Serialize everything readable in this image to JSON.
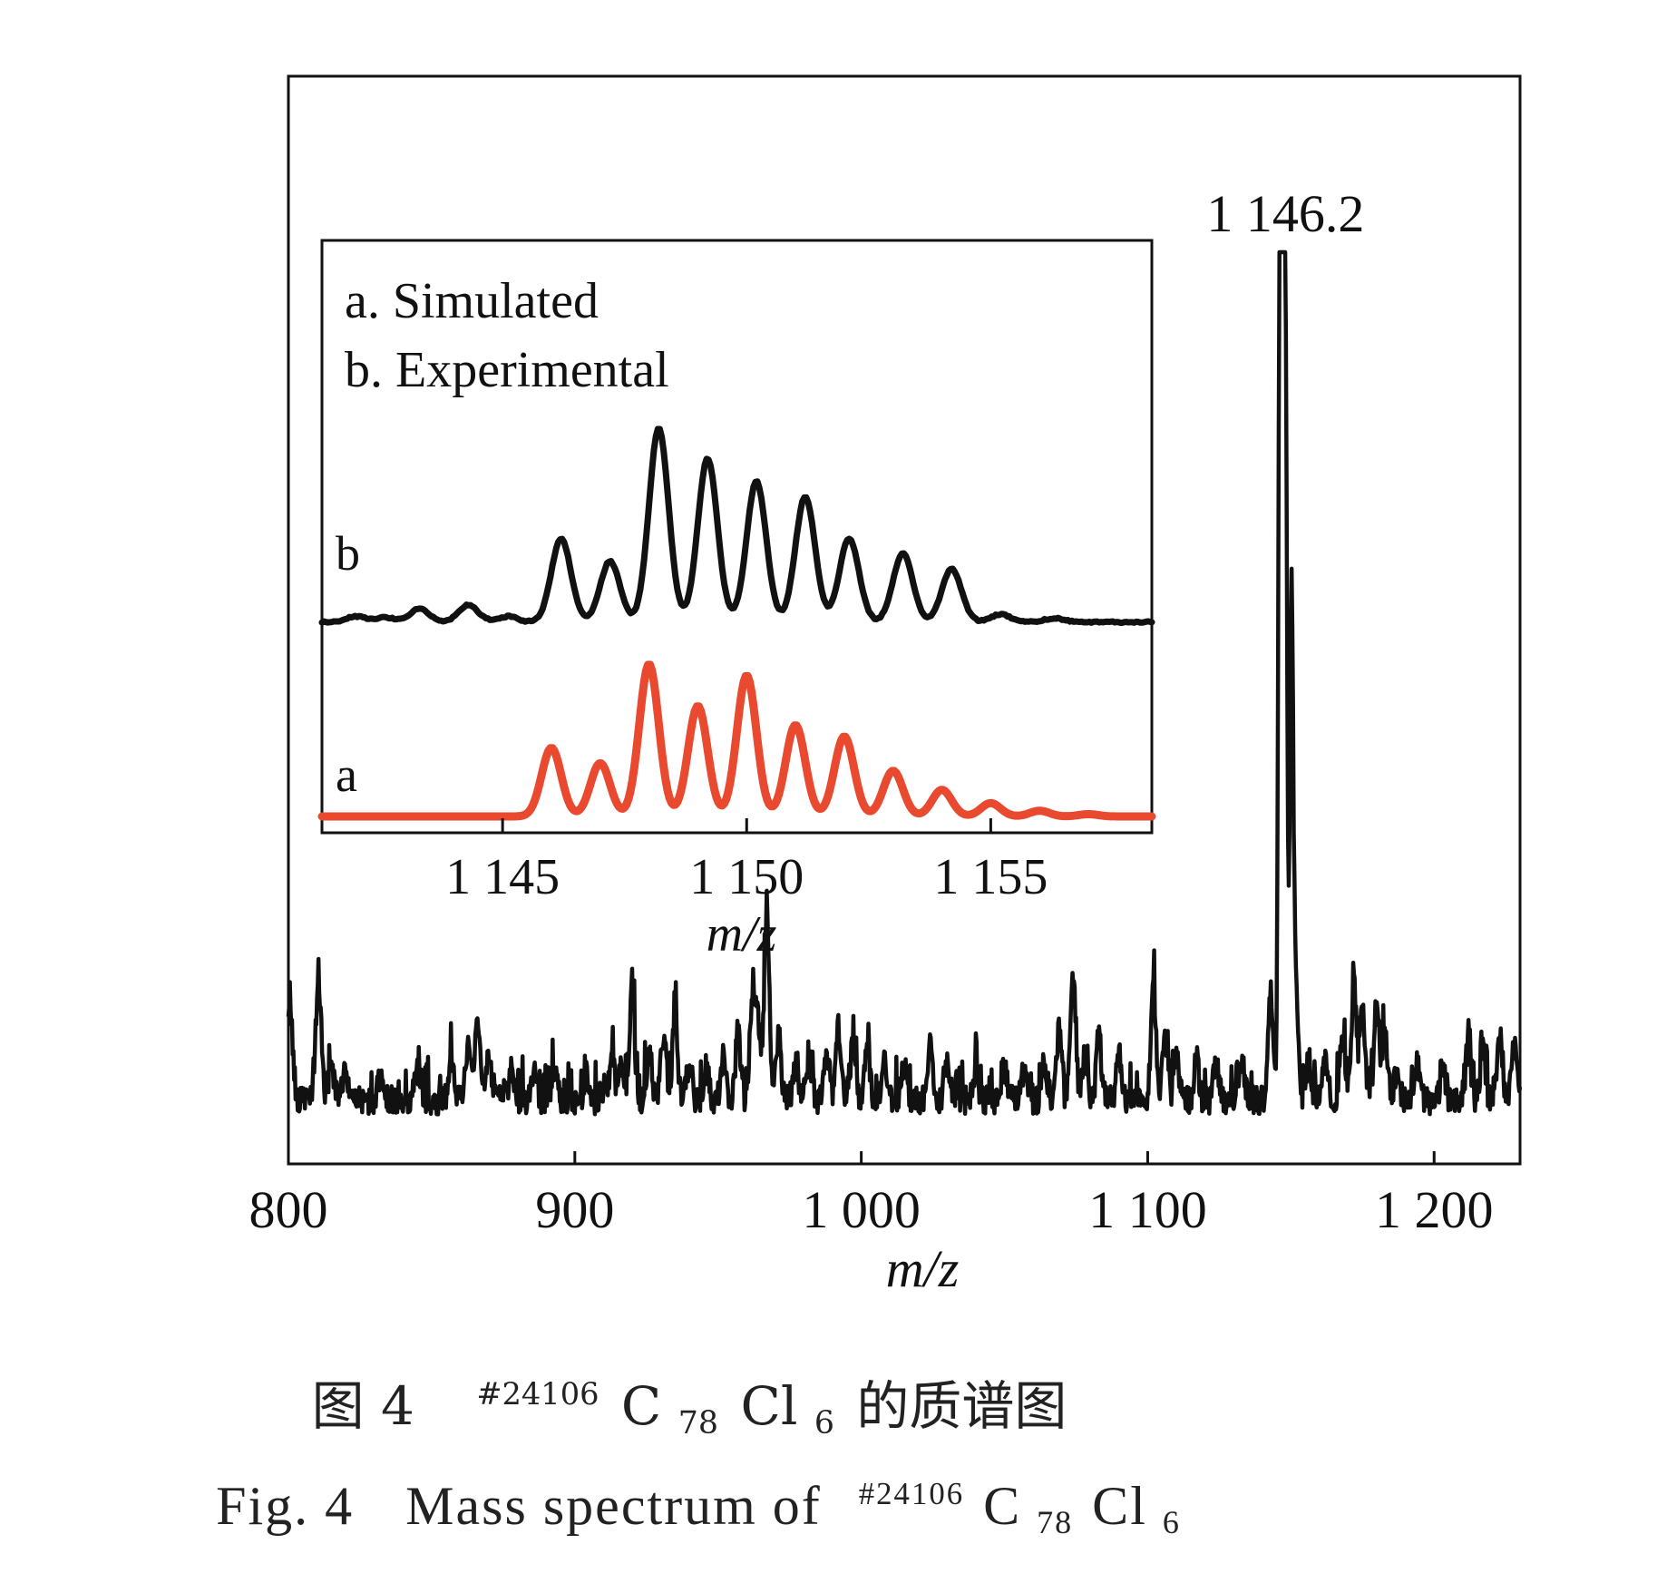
{
  "figure": {
    "caption_zh": {
      "prefix": "图 4",
      "superscript": "#24106",
      "formula_c": "C",
      "formula_c_sub": "78",
      "formula_cl": "Cl",
      "formula_cl_sub": "6",
      "suffix": "的质谱图"
    },
    "caption_en": {
      "prefix": "Fig. 4",
      "text": "Mass spectrum of",
      "superscript": "#24106",
      "formula_c": "C",
      "formula_c_sub": "78",
      "formula_cl": "Cl",
      "formula_cl_sub": "6"
    }
  },
  "colors": {
    "experimental": "#111111",
    "simulated": "#e8492f",
    "frame": "#111111",
    "background": "#ffffff"
  },
  "chart_data": [
    {
      "type": "line",
      "role": "main",
      "xlabel": "m/z",
      "ylabel": "",
      "xlim": [
        800,
        1230
      ],
      "ylim": [
        0,
        100
      ],
      "xticks": [
        800,
        900,
        1000,
        1100,
        1200
      ],
      "xtick_labels": [
        "800",
        "900",
        "1 000",
        "1 100",
        "1 200"
      ],
      "grid": false,
      "annotations": [
        {
          "text": "1 146.2",
          "x": 1146.2
        }
      ],
      "series": [
        {
          "color": "#111111",
          "noise_baseline": 3,
          "peaks": [
            {
              "x": 800,
              "y": 7
            },
            {
              "x": 801,
              "y": 7
            },
            {
              "x": 810,
              "y": 9
            },
            {
              "x": 811,
              "y": 8
            },
            {
              "x": 815,
              "y": 5
            },
            {
              "x": 820,
              "y": 4
            },
            {
              "x": 832,
              "y": 3
            },
            {
              "x": 845,
              "y": 4
            },
            {
              "x": 857,
              "y": 5
            },
            {
              "x": 863,
              "y": 7
            },
            {
              "x": 866,
              "y": 11
            },
            {
              "x": 870,
              "y": 6
            },
            {
              "x": 878,
              "y": 4
            },
            {
              "x": 886,
              "y": 4
            },
            {
              "x": 893,
              "y": 4
            },
            {
              "x": 904,
              "y": 3
            },
            {
              "x": 913,
              "y": 5
            },
            {
              "x": 916,
              "y": 4
            },
            {
              "x": 920,
              "y": 14
            },
            {
              "x": 926,
              "y": 7
            },
            {
              "x": 931,
              "y": 9
            },
            {
              "x": 935,
              "y": 11
            },
            {
              "x": 940,
              "y": 5
            },
            {
              "x": 946,
              "y": 4
            },
            {
              "x": 952,
              "y": 6
            },
            {
              "x": 957,
              "y": 9
            },
            {
              "x": 962,
              "y": 14
            },
            {
              "x": 964,
              "y": 10
            },
            {
              "x": 967,
              "y": 24
            },
            {
              "x": 971,
              "y": 8
            },
            {
              "x": 977,
              "y": 5
            },
            {
              "x": 982,
              "y": 5
            },
            {
              "x": 988,
              "y": 6
            },
            {
              "x": 992,
              "y": 9
            },
            {
              "x": 997,
              "y": 7
            },
            {
              "x": 1002,
              "y": 8
            },
            {
              "x": 1008,
              "y": 6
            },
            {
              "x": 1015,
              "y": 5
            },
            {
              "x": 1024,
              "y": 7
            },
            {
              "x": 1030,
              "y": 5
            },
            {
              "x": 1040,
              "y": 4
            },
            {
              "x": 1050,
              "y": 4
            },
            {
              "x": 1057,
              "y": 4
            },
            {
              "x": 1064,
              "y": 5
            },
            {
              "x": 1069,
              "y": 9
            },
            {
              "x": 1074,
              "y": 17
            },
            {
              "x": 1078,
              "y": 6
            },
            {
              "x": 1083,
              "y": 8
            },
            {
              "x": 1090,
              "y": 6
            },
            {
              "x": 1102,
              "y": 15
            },
            {
              "x": 1106,
              "y": 9
            },
            {
              "x": 1110,
              "y": 6
            },
            {
              "x": 1117,
              "y": 5
            },
            {
              "x": 1124,
              "y": 4
            },
            {
              "x": 1133,
              "y": 5
            },
            {
              "x": 1143,
              "y": 14
            },
            {
              "x": 1146.2,
              "y": 100
            },
            {
              "x": 1147.2,
              "y": 86
            },
            {
              "x": 1148.2,
              "y": 72
            },
            {
              "x": 1150.2,
              "y": 52
            },
            {
              "x": 1151.5,
              "y": 18
            },
            {
              "x": 1156,
              "y": 5
            },
            {
              "x": 1162,
              "y": 5
            },
            {
              "x": 1168,
              "y": 9
            },
            {
              "x": 1172,
              "y": 15
            },
            {
              "x": 1175,
              "y": 12
            },
            {
              "x": 1180,
              "y": 12
            },
            {
              "x": 1183,
              "y": 8
            },
            {
              "x": 1187,
              "y": 4
            },
            {
              "x": 1194,
              "y": 5
            },
            {
              "x": 1203,
              "y": 4
            },
            {
              "x": 1212,
              "y": 7
            },
            {
              "x": 1217,
              "y": 7
            },
            {
              "x": 1223,
              "y": 9
            },
            {
              "x": 1228,
              "y": 7
            }
          ]
        }
      ]
    },
    {
      "type": "line",
      "role": "inset",
      "xlabel": "m/z",
      "xlim": [
        1141.3,
        1158.3
      ],
      "ylim": [
        0,
        100
      ],
      "xticks": [
        1145,
        1150,
        1155
      ],
      "xtick_labels": [
        "1 145",
        "1 150",
        "1 155"
      ],
      "grid": false,
      "legend_lines": [
        "a. Simulated",
        "b. Experimental"
      ],
      "series": [
        {
          "name": "a. Simulated",
          "label": "a",
          "color": "#e8492f",
          "offset": 0,
          "peaks": [
            {
              "x": 1146.0,
              "y": 18
            },
            {
              "x": 1147.0,
              "y": 14
            },
            {
              "x": 1148.0,
              "y": 40
            },
            {
              "x": 1149.0,
              "y": 29
            },
            {
              "x": 1150.0,
              "y": 37
            },
            {
              "x": 1151.0,
              "y": 24
            },
            {
              "x": 1152.0,
              "y": 21
            },
            {
              "x": 1153.0,
              "y": 12
            },
            {
              "x": 1154.0,
              "y": 7
            },
            {
              "x": 1155.0,
              "y": 3.5
            },
            {
              "x": 1156.0,
              "y": 1.5
            },
            {
              "x": 1157.0,
              "y": 0.6
            }
          ]
        },
        {
          "name": "b. Experimental",
          "label": "b",
          "color": "#111111",
          "offset": 51,
          "peaks": [
            {
              "x": 1142.0,
              "y": 1.5
            },
            {
              "x": 1142.6,
              "y": 1.2
            },
            {
              "x": 1143.3,
              "y": 3.5
            },
            {
              "x": 1144.3,
              "y": 4.5
            },
            {
              "x": 1145.1,
              "y": 1.5
            },
            {
              "x": 1146.2,
              "y": 22
            },
            {
              "x": 1147.2,
              "y": 16
            },
            {
              "x": 1148.2,
              "y": 51
            },
            {
              "x": 1149.2,
              "y": 43
            },
            {
              "x": 1150.2,
              "y": 37
            },
            {
              "x": 1151.2,
              "y": 33
            },
            {
              "x": 1152.1,
              "y": 22
            },
            {
              "x": 1153.2,
              "y": 18
            },
            {
              "x": 1154.2,
              "y": 14
            },
            {
              "x": 1155.2,
              "y": 2
            },
            {
              "x": 1156.3,
              "y": 1
            }
          ]
        }
      ]
    }
  ]
}
